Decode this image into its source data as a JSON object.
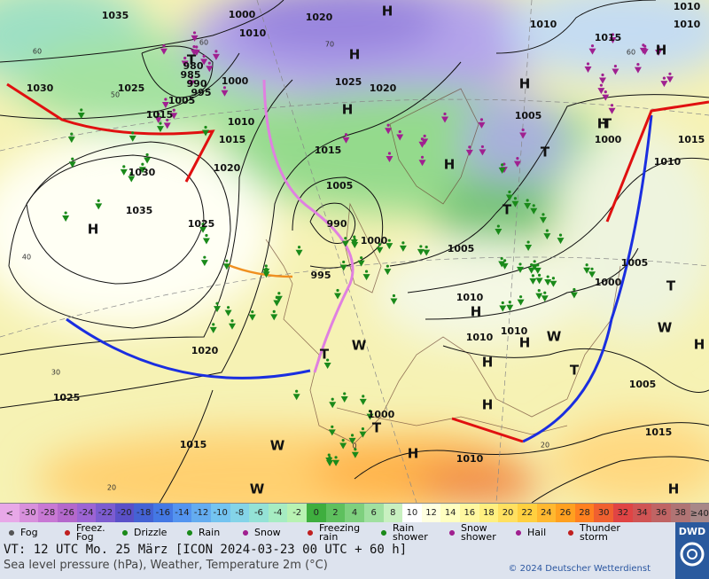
{
  "map": {
    "pressure_labels": [
      1035,
      1000,
      1020,
      1010,
      1010,
      1010,
      1010,
      1015,
      980,
      985,
      990,
      995,
      1000,
      1005,
      1030,
      1025,
      1015,
      1025,
      1020,
      1010,
      1015,
      1020,
      1015,
      1005,
      1000,
      1015,
      1010,
      1030,
      1005,
      1035,
      1025,
      990,
      1000,
      1005,
      1005,
      995,
      1000,
      1010,
      1010,
      1010,
      1020,
      1005,
      1025,
      1000,
      1015,
      1015,
      1010
    ],
    "temperature_labels": [
      60,
      60,
      50,
      70,
      60,
      40,
      30,
      20,
      0,
      20
    ],
    "centers": [
      "H",
      "H",
      "H",
      "H",
      "H",
      "H",
      "H",
      "T",
      "T",
      "T",
      "T",
      "T",
      "T",
      "H",
      "H",
      "H",
      "H",
      "T",
      "H",
      "H",
      "T",
      "H",
      "H",
      "W",
      "W",
      "W",
      "W",
      "W"
    ]
  },
  "scale": {
    "below": [
      "<",
      "-30"
    ],
    "values": [
      -30,
      -28,
      -26,
      -24,
      -22,
      -20,
      -18,
      -16,
      -14,
      -12,
      -10,
      -8,
      -6,
      -4,
      -2,
      0,
      2,
      4,
      6,
      8,
      10,
      12,
      14,
      16,
      18,
      20,
      22,
      24,
      26,
      28,
      30,
      32,
      34,
      36,
      38
    ],
    "above": [
      "≥40",
      "°C"
    ],
    "colors": [
      "#e8a8e8",
      "#d890dc",
      "#c878d4",
      "#b468cc",
      "#9c64d4",
      "#7c5cd0",
      "#5a50c8",
      "#4462d4",
      "#4478e4",
      "#5494f0",
      "#64acf0",
      "#74c4f0",
      "#84d4e8",
      "#94e2d6",
      "#a6ecc2",
      "#b8f2b2",
      "#3eae3e",
      "#5ec05e",
      "#7ed07e",
      "#a0e0a0",
      "#c8f0c0",
      "#ffffff",
      "#ffffe0",
      "#ffffc0",
      "#fff8a0",
      "#fff080",
      "#ffe060",
      "#ffd040",
      "#ffb830",
      "#ffa020",
      "#ff8020",
      "#f06030",
      "#e04444",
      "#d05454",
      "#c06464",
      "#b07474",
      "#a88888"
    ]
  },
  "legend": [
    "Fog",
    "Freez. Fog",
    "Drizzle",
    "Rain",
    "Snow",
    "Freezing rain",
    "Rain shower",
    "Snow shower",
    "Hail",
    "Thunder storm"
  ],
  "footer": {
    "valid_time": "VT: 12 UTC Mo.  25 März [ICON 2024-03-23  00 UTC + 60 h]",
    "description": "Sea level pressure (hPa), Weather, Temperature 2m (°C)",
    "copyright": "© 2024 Deutscher Wetterdienst",
    "logo": "DWD"
  }
}
